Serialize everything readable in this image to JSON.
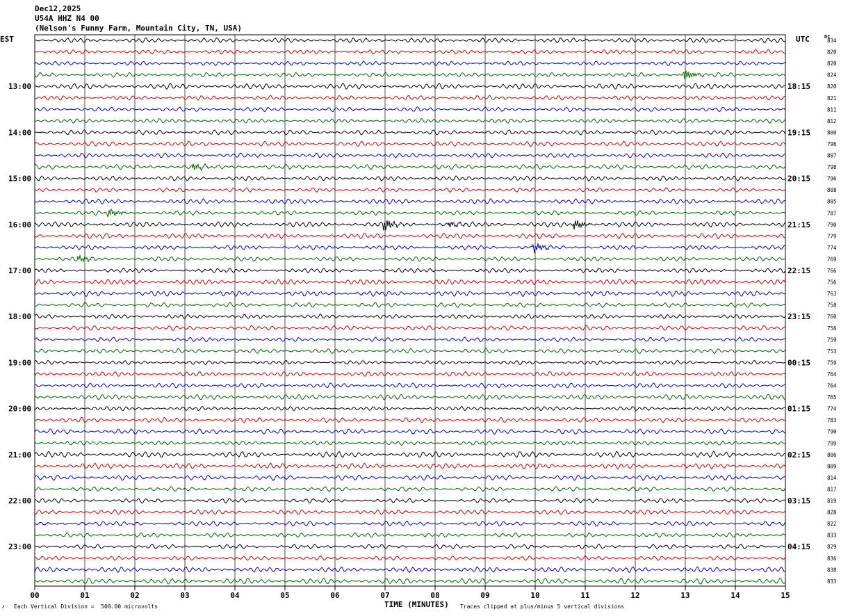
{
  "header": {
    "date": "Dec12,2025",
    "station": "U54A HHZ N4 00",
    "location": "(Nelson's Funny Farm, Mountain City, TN, USA)"
  },
  "left_timezone": "EST",
  "right_timezone": "UTC",
  "dc_label": "DC",
  "footer": {
    "left_mark": "↗",
    "scale_note": "Each Vertical Division =  500.00 microvolts",
    "clip_note": "Traces clipped at plus/minus 5 vertical divisions"
  },
  "chart_data": {
    "type": "line",
    "title": "",
    "xlabel": "TIME (MINUTES)",
    "ylabel": "",
    "xlim": [
      0,
      15
    ],
    "x_ticks": [
      "00",
      "01",
      "02",
      "03",
      "04",
      "05",
      "06",
      "07",
      "08",
      "09",
      "10",
      "11",
      "12",
      "13",
      "14",
      "15"
    ],
    "grid": "vertical lines at each minute",
    "trace_count": 48,
    "trace_colors": [
      "#000000",
      "#d40000",
      "#0000c8",
      "#006400"
    ],
    "left_hour_labels": [
      "13:00",
      "14:00",
      "15:00",
      "16:00",
      "17:00",
      "18:00",
      "19:00",
      "20:00",
      "21:00",
      "22:00",
      "23:00"
    ],
    "right_hour_labels": [
      "18:15",
      "19:15",
      "20:15",
      "21:15",
      "22:15",
      "23:15",
      "00:15",
      "01:15",
      "02:15",
      "03:15",
      "04:15"
    ],
    "dc_values": [
      834,
      820,
      820,
      824,
      820,
      821,
      811,
      812,
      800,
      796,
      807,
      798,
      796,
      808,
      805,
      787,
      790,
      779,
      774,
      769,
      766,
      756,
      763,
      758,
      760,
      756,
      759,
      753,
      759,
      764,
      764,
      765,
      774,
      783,
      790,
      799,
      806,
      809,
      814,
      817,
      819,
      828,
      822,
      833,
      829,
      836,
      838,
      833
    ],
    "events": [
      {
        "trace": 3,
        "minute": 13.0,
        "amplitude": 1.6
      },
      {
        "trace": 11,
        "minute": 3.2,
        "amplitude": 1.0
      },
      {
        "trace": 15,
        "minute": 1.5,
        "amplitude": 1.2
      },
      {
        "trace": 16,
        "minute": 7.0,
        "amplitude": 1.8
      },
      {
        "trace": 16,
        "minute": 8.3,
        "amplitude": 0.9
      },
      {
        "trace": 16,
        "minute": 10.8,
        "amplitude": 1.4
      },
      {
        "trace": 18,
        "minute": 10.0,
        "amplitude": 1.3
      },
      {
        "trace": 19,
        "minute": 0.9,
        "amplitude": 1.0
      }
    ]
  }
}
